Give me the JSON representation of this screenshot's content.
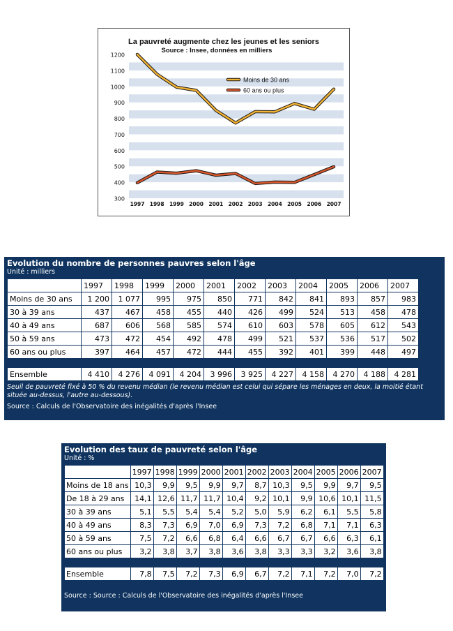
{
  "chart_data": {
    "type": "line",
    "title": "La pauvreté augmente chez les jeunes et les seniors",
    "subtitle": "Source : Insee, données en milliers",
    "x": [
      "1997",
      "1998",
      "1999",
      "2000",
      "2001",
      "2002",
      "2003",
      "2004",
      "2005",
      "2006",
      "2007"
    ],
    "ylim": [
      300,
      1200
    ],
    "yticks": [
      300,
      400,
      500,
      600,
      700,
      800,
      900,
      1000,
      1100,
      1200
    ],
    "grid": "horizontal bands",
    "legend_position": "top-right",
    "series": [
      {
        "name": "Moins de 30 ans",
        "color": "#f2b233",
        "values": [
          1200,
          1077,
          995,
          975,
          850,
          771,
          842,
          841,
          893,
          857,
          983
        ]
      },
      {
        "name": "60 ans ou plus",
        "color": "#d8562a",
        "values": [
          397,
          464,
          457,
          472,
          444,
          455,
          392,
          401,
          399,
          448,
          497
        ]
      }
    ]
  },
  "table1": {
    "title": "Evolution du nombre de personnes pauvres selon l'âge",
    "unit": "Unité : milliers",
    "years": [
      "1997",
      "1998",
      "1999",
      "2000",
      "2001",
      "2002",
      "2003",
      "2004",
      "2005",
      "2006",
      "2007"
    ],
    "rows": [
      {
        "label": "Moins de 30 ans",
        "values": [
          "1 200",
          "1 077",
          "995",
          "975",
          "850",
          "771",
          "842",
          "841",
          "893",
          "857",
          "983"
        ]
      },
      {
        "label": "30 à 39 ans",
        "values": [
          "437",
          "467",
          "458",
          "455",
          "440",
          "426",
          "499",
          "524",
          "513",
          "458",
          "478"
        ]
      },
      {
        "label": "40 à 49 ans",
        "values": [
          "687",
          "606",
          "568",
          "585",
          "574",
          "610",
          "603",
          "578",
          "605",
          "612",
          "543"
        ]
      },
      {
        "label": "50 à 59 ans",
        "values": [
          "473",
          "472",
          "454",
          "492",
          "478",
          "499",
          "521",
          "537",
          "536",
          "517",
          "502"
        ]
      },
      {
        "label": "60 ans ou plus",
        "values": [
          "397",
          "464",
          "457",
          "472",
          "444",
          "455",
          "392",
          "401",
          "399",
          "448",
          "497"
        ]
      }
    ],
    "total": {
      "label": "Ensemble",
      "values": [
        "4 410",
        "4 276",
        "4 091",
        "4 204",
        "3 996",
        "3 925",
        "4 227",
        "4 158",
        "4 270",
        "4 188",
        "4 281"
      ]
    },
    "note": "Seuil de pauvreté fixé à 50 % du revenu médian (le revenu médian est celui qui sépare les ménages en deux, la moitié étant située au-dessus, l'autre au-dessous).",
    "source": "Source : Calculs de l'Observatoire des inégalités d'après l'Insee"
  },
  "table2": {
    "title": "Evolution des taux de pauvreté selon l'âge",
    "unit": "Unité : %",
    "years": [
      "1997",
      "1998",
      "1999",
      "2000",
      "2001",
      "2002",
      "2003",
      "2004",
      "2005",
      "2006",
      "2007"
    ],
    "rows": [
      {
        "label": "Moins de 18 ans",
        "values": [
          "10,3",
          "9,9",
          "9,5",
          "9,9",
          "9,7",
          "8,7",
          "10,3",
          "9,5",
          "9,9",
          "9,7",
          "9,5"
        ]
      },
      {
        "label": "De 18 à 29 ans",
        "values": [
          "14,1",
          "12,6",
          "11,7",
          "11,7",
          "10,4",
          "9,2",
          "10,1",
          "9,9",
          "10,6",
          "10,1",
          "11,5"
        ]
      },
      {
        "label": "30 à 39 ans",
        "values": [
          "5,1",
          "5,5",
          "5,4",
          "5,4",
          "5,2",
          "5,0",
          "5,9",
          "6,2",
          "6,1",
          "5,5",
          "5,8"
        ]
      },
      {
        "label": "40 à 49 ans",
        "values": [
          "8,3",
          "7,3",
          "6,9",
          "7,0",
          "6,9",
          "7,3",
          "7,2",
          "6,8",
          "7,1",
          "7,1",
          "6,3"
        ]
      },
      {
        "label": "50 à 59 ans",
        "values": [
          "7,5",
          "7,2",
          "6,6",
          "6,8",
          "6,4",
          "6,6",
          "6,7",
          "6,7",
          "6,6",
          "6,3",
          "6,1"
        ]
      },
      {
        "label": "60 ans ou plus",
        "values": [
          "3,2",
          "3,8",
          "3,7",
          "3,8",
          "3,6",
          "3,8",
          "3,3",
          "3,3",
          "3,2",
          "3,6",
          "3,8"
        ]
      }
    ],
    "total": {
      "label": "Ensemble",
      "values": [
        "7,8",
        "7,5",
        "7,2",
        "7,3",
        "6,9",
        "6,7",
        "7,2",
        "7,1",
        "7,2",
        "7,0",
        "7,2"
      ]
    },
    "source": "Source : Source : Calculs de l'Observatoire des inégalités d'après l'Insee"
  }
}
